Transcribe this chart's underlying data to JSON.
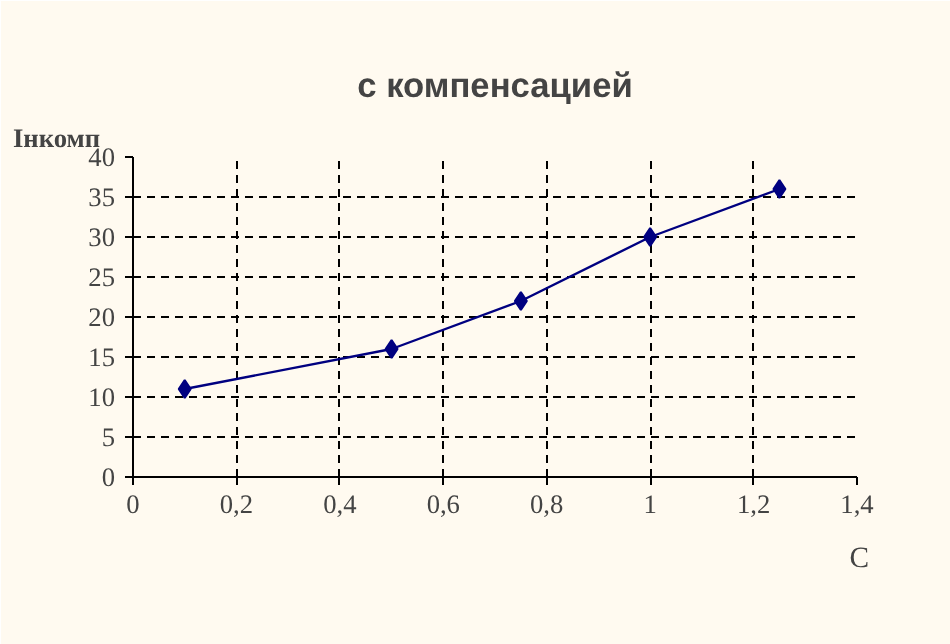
{
  "chart_data": {
    "type": "line",
    "title": "с компенсацией",
    "xlabel": "C",
    "ylabel": "Iнкомп",
    "x": [
      0.1,
      0.5,
      0.75,
      1,
      1.25
    ],
    "series": [
      {
        "color": "#000080",
        "values": [
          11,
          16,
          22,
          30,
          36
        ]
      }
    ],
    "xlim": [
      0,
      1.4
    ],
    "xticks": [
      0,
      {
        "value": 0.2,
        "label": "0,2"
      },
      {
        "value": 0.4,
        "label": "0,4"
      },
      {
        "value": 0.6,
        "label": "0,6"
      },
      {
        "value": 0.8,
        "label": "0,8"
      },
      1,
      {
        "value": 1.2,
        "label": "1,2"
      },
      {
        "value": 1.4,
        "label": "1,4"
      }
    ],
    "ylim": [
      0,
      40
    ],
    "yticks": [
      0,
      5,
      10,
      15,
      20,
      25,
      30,
      35,
      40
    ],
    "grid": true,
    "marker": "diamond",
    "line_style": "solid"
  }
}
